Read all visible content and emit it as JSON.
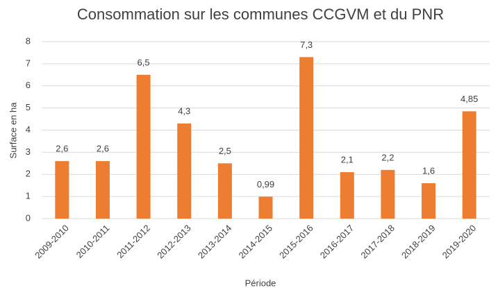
{
  "chart_data": {
    "type": "bar",
    "title": "Consommation sur les communes CCGVM et du PNR",
    "x_label": "Période",
    "y_label": "Surface en ha",
    "categories": [
      "2009-2010",
      "2010-2011",
      "2011-2012",
      "2012-2013",
      "2013-2014",
      "2014-2015",
      "2015-2016",
      "2016-2017",
      "2017-2018",
      "2018-2019",
      "2019-2020"
    ],
    "values": [
      2.6,
      2.6,
      6.5,
      4.3,
      2.5,
      0.99,
      7.3,
      2.1,
      2.2,
      1.6,
      4.85
    ],
    "value_labels": [
      "2,6",
      "2,6",
      "6,5",
      "4,3",
      "2,5",
      "0,99",
      "7,3",
      "2,1",
      "2,2",
      "1,6",
      "4,85"
    ],
    "color": "#ed7d31",
    "ylim": [
      0,
      8
    ],
    "yticks": [
      0,
      1,
      2,
      3,
      4,
      5,
      6,
      7,
      8
    ],
    "grid": true
  }
}
